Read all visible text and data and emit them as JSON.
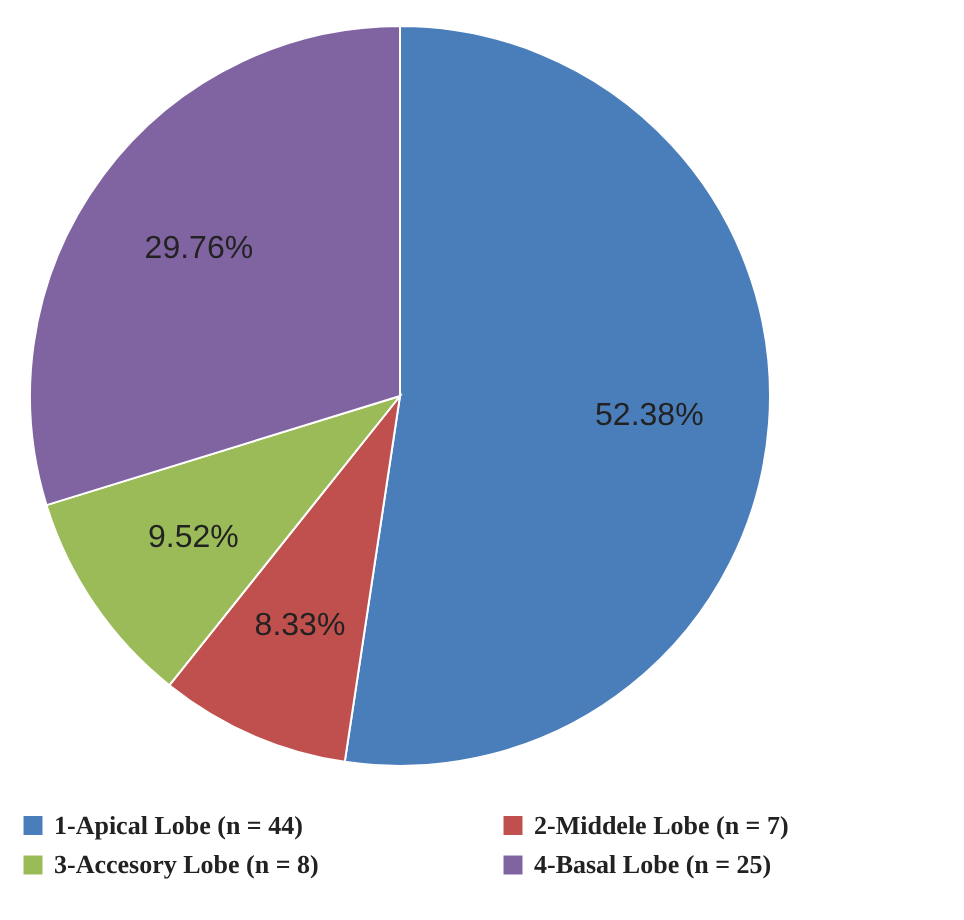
{
  "chart_data": {
    "type": "pie",
    "categories": [
      "1-Apical Lobe (n = 44)",
      "2-Middele Lobe (n = 7)",
      "3-Accesory Lobe (n = 8)",
      "4-Basal Lobe (n = 25)"
    ],
    "values": [
      52.38,
      8.33,
      9.52,
      29.76
    ],
    "colors": [
      "#4a7ebb",
      "#c0504d",
      "#9bbb59",
      "#8064a2"
    ],
    "value_labels": [
      "52.38%",
      "8.33%",
      "9.52%",
      "29.76%"
    ],
    "legend": "bottom"
  }
}
